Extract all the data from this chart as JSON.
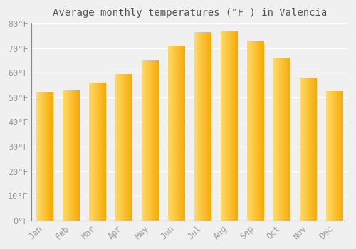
{
  "title": "Average monthly temperatures (°F ) in Valencia",
  "months": [
    "Jan",
    "Feb",
    "Mar",
    "Apr",
    "May",
    "Jun",
    "Jul",
    "Aug",
    "Sep",
    "Oct",
    "Nov",
    "Dec"
  ],
  "values": [
    52,
    53,
    56,
    59.5,
    65,
    71,
    76.5,
    77,
    73,
    66,
    58,
    52.5
  ],
  "bar_color_dark": "#F5A800",
  "bar_color_light": "#FFD966",
  "ylim": [
    0,
    80
  ],
  "yticks": [
    0,
    10,
    20,
    30,
    40,
    50,
    60,
    70,
    80
  ],
  "background_color": "#f0f0f0",
  "grid_color": "#ffffff",
  "title_fontsize": 10,
  "tick_fontsize": 8.5,
  "tick_color": "#999999",
  "title_color": "#555555",
  "bar_width": 0.65
}
